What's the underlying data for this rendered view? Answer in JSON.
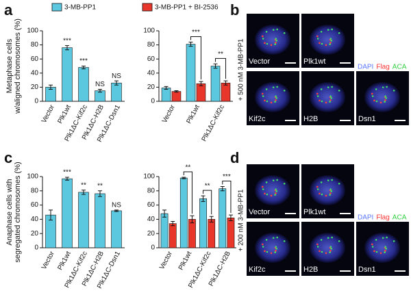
{
  "chart_data": [
    {
      "type": "bar",
      "y_label": [
        "Metaphase cells",
        "w/aligned chromosomes (%)"
      ],
      "categories": [
        "Vector",
        "Plk1wt",
        "Plk1ΔC-Kif2c",
        "Plk1ΔC-H2B",
        "Plk1ΔC-Dsn1"
      ],
      "values": [
        20,
        76,
        48,
        15,
        26
      ],
      "errors": [
        3,
        3,
        2,
        2,
        3
      ],
      "annotations": [
        null,
        "***",
        "***",
        "NS",
        "NS"
      ],
      "color": "#5bc8e0",
      "ylim": [
        0,
        100
      ],
      "yticks": [
        0,
        20,
        40,
        60,
        80,
        100
      ]
    },
    {
      "type": "grouped_bar",
      "categories": [
        "Vector",
        "Plk1wt",
        "Plk1ΔC-Kif2c"
      ],
      "series": [
        {
          "name": "3-MB-PP1",
          "color": "#5bc8e0",
          "values": [
            19,
            81,
            50
          ],
          "errors": [
            2,
            3,
            3
          ]
        },
        {
          "name": "3-MB-PP1 + BI-2536",
          "color": "#e8362a",
          "values": [
            14,
            25,
            26
          ],
          "errors": [
            1,
            3,
            3
          ]
        }
      ],
      "annotations": [
        null,
        "***",
        "**"
      ],
      "ylim": [
        0,
        100
      ],
      "yticks": [
        0,
        20,
        40,
        60,
        80,
        100
      ]
    },
    {
      "type": "bar",
      "y_label": [
        "Anaphase cells with",
        "segregated chromosomes (%)"
      ],
      "categories": [
        "Vector",
        "Plk1wt",
        "Plk1ΔC-Kif2c",
        "Plk1ΔC-H2B",
        "Plk1ΔC-Dsn1"
      ],
      "values": [
        46,
        97,
        78,
        76,
        52
      ],
      "errors": [
        7,
        2,
        3,
        4,
        1
      ],
      "annotations": [
        null,
        "***",
        "**",
        "**",
        "NS"
      ],
      "color": "#5bc8e0",
      "ylim": [
        0,
        100
      ],
      "yticks": [
        0,
        20,
        40,
        60,
        80,
        100
      ]
    },
    {
      "type": "grouped_bar",
      "categories": [
        "Vector",
        "Plk1wt",
        "Plk1ΔC-Kif2c",
        "Plk1ΔC-H2B"
      ],
      "series": [
        {
          "name": "3-MB-PP1",
          "color": "#5bc8e0",
          "values": [
            48,
            98,
            69,
            83
          ],
          "errors": [
            5,
            1,
            4,
            3
          ]
        },
        {
          "name": "3-MB-PP1 + BI-2536",
          "color": "#e8362a",
          "values": [
            34,
            40,
            40,
            42
          ],
          "errors": [
            3,
            5,
            4,
            4
          ]
        }
      ],
      "annotations": [
        null,
        "**",
        "**",
        "***"
      ],
      "ylim": [
        0,
        100
      ],
      "yticks": [
        0,
        20,
        40,
        60,
        80,
        100
      ]
    }
  ],
  "figure": {
    "panel_labels": [
      "a",
      "b",
      "c",
      "d"
    ],
    "b": {
      "condition": "+ 500 nM 3-MB-PP1",
      "images": [
        "Vector",
        "Plk1wt",
        "Kif2c",
        "H2B",
        "Dsn1"
      ],
      "stains": [
        "DAPI",
        "Flag",
        "ACA"
      ]
    },
    "d": {
      "condition": "+ 200 nM 3-MB-PP1",
      "images": [
        "Vector",
        "Plk1wt",
        "Kif2c",
        "H2B",
        "Dsn1"
      ],
      "stains": [
        "DAPI",
        "Flag",
        "ACA"
      ]
    }
  }
}
